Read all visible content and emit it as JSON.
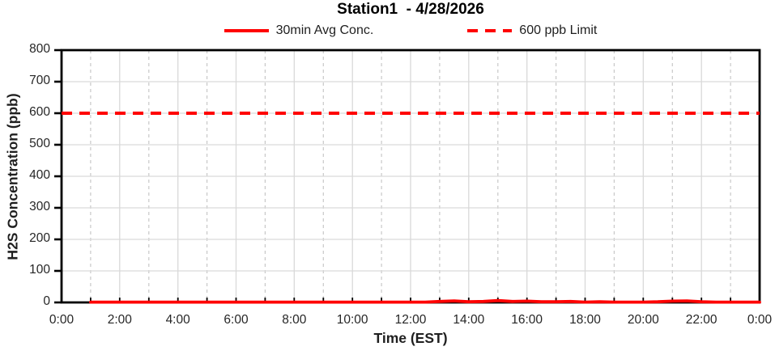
{
  "header": {
    "title": "Station1  - 4/28/2026"
  },
  "legend": {
    "items": [
      {
        "label": "30min Avg Conc.",
        "swatch": "solid-red-line",
        "color": "#FF0000"
      },
      {
        "label": "600 ppb Limit",
        "swatch": "dashed-red-line",
        "color": "#FF0000"
      }
    ]
  },
  "chart_data": {
    "type": "line",
    "title": "Station1  - 4/28/2026",
    "xlabel": "Time (EST)",
    "ylabel": "H2S Concentration (ppb)",
    "ylim": [
      0,
      800
    ],
    "y_tick_step": 100,
    "y_tick_labels": [
      "0",
      "100",
      "200",
      "300",
      "400",
      "500",
      "600",
      "700",
      "800"
    ],
    "x_range_hours": [
      0,
      24
    ],
    "x_tick_hours": [
      0,
      2,
      4,
      6,
      8,
      10,
      12,
      14,
      16,
      18,
      20,
      22,
      24
    ],
    "x_tick_labels": [
      "0:00",
      "2:00",
      "4:00",
      "6:00",
      "8:00",
      "10:00",
      "12:00",
      "14:00",
      "16:00",
      "18:00",
      "20:00",
      "22:00",
      "0:00"
    ],
    "grid": {
      "horizontal_major": "solid each 100 ppb",
      "vertical_even_hours": "solid",
      "vertical_odd_hours": "dashed"
    },
    "colors": {
      "series": "#FF0000",
      "limit": "#FF0000",
      "grid_major": "#D9D9D9",
      "grid_minor": "#C8C8C8",
      "axis": "#000000",
      "text": "#1f1f1f"
    },
    "series": [
      {
        "name": "30min Avg Conc.",
        "type": "line",
        "dash": "solid",
        "color": "#FF0000",
        "x_hours": [
          1,
          1.5,
          2,
          2.5,
          3,
          3.5,
          4,
          4.5,
          5,
          5.5,
          6,
          6.5,
          7,
          7.5,
          8,
          8.5,
          9,
          9.5,
          10,
          10.5,
          11,
          11.5,
          12,
          12.5,
          13,
          13.5,
          14,
          14.5,
          15,
          15.5,
          16,
          16.5,
          17,
          17.5,
          18,
          18.5,
          19,
          19.5,
          20,
          20.5,
          21,
          21.5,
          22,
          22.5,
          23,
          23.5,
          24
        ],
        "values_ppb": [
          1,
          1,
          1,
          1,
          1,
          1,
          1,
          1,
          1,
          1,
          1,
          1,
          1,
          1,
          1,
          1,
          1,
          1,
          1,
          1,
          1,
          1,
          1,
          1,
          3,
          5,
          2,
          3,
          6,
          3,
          4,
          2,
          2,
          3,
          1,
          2,
          1,
          1,
          1,
          2,
          4,
          5,
          2,
          1,
          1,
          1,
          1
        ]
      },
      {
        "name": "600 ppb Limit",
        "type": "hline",
        "dash": "dashed",
        "color": "#FF0000",
        "value_ppb": 600,
        "x_span_hours": [
          0,
          24
        ]
      }
    ]
  }
}
